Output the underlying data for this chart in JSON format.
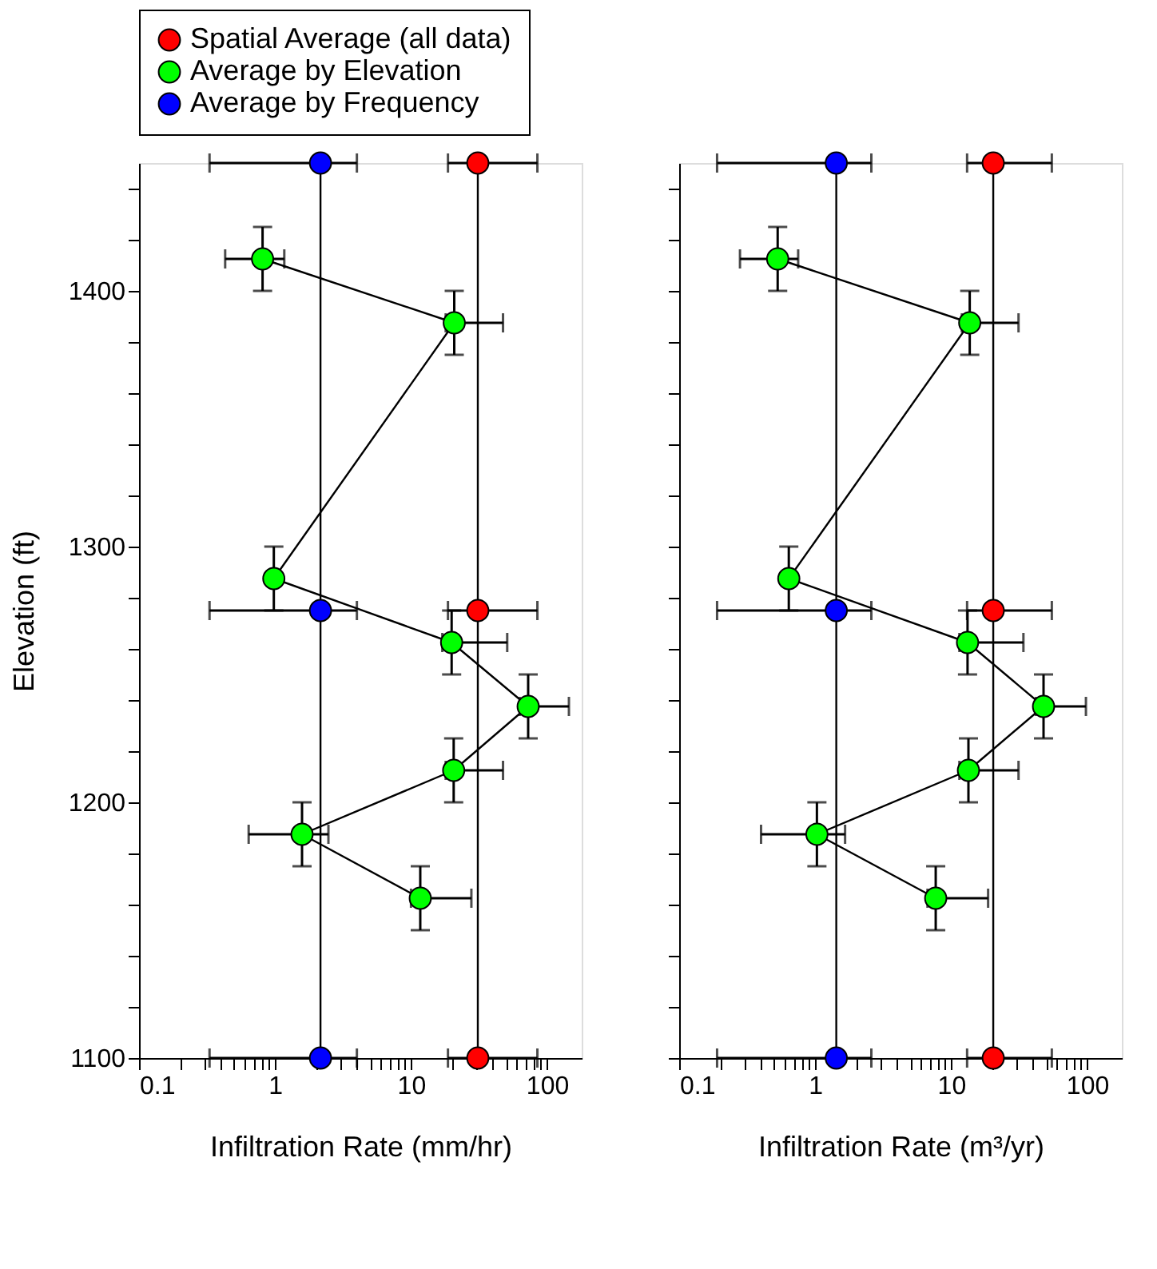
{
  "chart_data": [
    {
      "type": "line",
      "xlabel": "Infiltration Rate (mm/hr)",
      "ylabel": "Elevation (ft)",
      "log": "x",
      "marker": "circle",
      "legend": "top",
      "grid": false,
      "xlim": [
        0.1,
        180
      ],
      "xticks": [
        0.1,
        {
          "value": 0.2,
          "label": null
        },
        {
          "value": 0.3,
          "label": null
        },
        {
          "value": 0.4,
          "label": null
        },
        {
          "value": 0.5,
          "label": null
        },
        {
          "value": 0.6,
          "label": null
        },
        {
          "value": 0.7,
          "label": null
        },
        {
          "value": 0.8,
          "label": null
        },
        {
          "value": 0.9,
          "label": null
        },
        1,
        {
          "value": 2,
          "label": null
        },
        {
          "value": 3,
          "label": null
        },
        {
          "value": 4,
          "label": null
        },
        {
          "value": 5,
          "label": null
        },
        {
          "value": 6,
          "label": null
        },
        {
          "value": 7,
          "label": null
        },
        {
          "value": 8,
          "label": null
        },
        {
          "value": 9,
          "label": null
        },
        10,
        {
          "value": 20,
          "label": null
        },
        {
          "value": 30,
          "label": null
        },
        {
          "value": 40,
          "label": null
        },
        {
          "value": 50,
          "label": null
        },
        {
          "value": 60,
          "label": null
        },
        {
          "value": 70,
          "label": null
        },
        {
          "value": 80,
          "label": null
        },
        {
          "value": 90,
          "label": null
        },
        100
      ],
      "ylim": [
        1100,
        1450
      ],
      "yticks": [
        1100,
        {
          "value": 1120,
          "label": null
        },
        {
          "value": 1140,
          "label": null
        },
        {
          "value": 1160,
          "label": null
        },
        {
          "value": 1180,
          "label": null
        },
        1200,
        {
          "value": 1220,
          "label": null
        },
        {
          "value": 1240,
          "label": null
        },
        {
          "value": 1260,
          "label": null
        },
        {
          "value": 1280,
          "label": null
        },
        1300,
        {
          "value": 1320,
          "label": null
        },
        {
          "value": 1340,
          "label": null
        },
        {
          "value": 1360,
          "label": null
        },
        {
          "value": 1380,
          "label": null
        },
        1400,
        {
          "value": 1420,
          "label": null
        },
        {
          "value": 1440,
          "label": null
        }
      ],
      "series": [
        {
          "name": "Spatial Average (all data)",
          "color": "#ff0000",
          "x": [
            31,
            31,
            31
          ],
          "values": [
            1100,
            1275,
            1450
          ],
          "xerrors": [
            [
              18.7,
              85
            ],
            [
              18.7,
              85
            ],
            [
              18.7,
              85
            ]
          ]
        },
        {
          "name": "Average by Elevation",
          "color": "#00ff00",
          "x": [
            0.81,
            20.8,
            0.98,
            19.9,
            72.7,
            20.6,
            1.58,
            11.7
          ],
          "values": [
            1412.5,
            1387.5,
            1287.5,
            1262.5,
            1237.5,
            1212.5,
            1187.5,
            1162.5
          ],
          "errors": [
            12.5,
            12.5,
            12.5,
            12.5,
            12.5,
            12.5,
            12.5,
            12.5
          ],
          "xerrors": [
            [
              0.43,
              1.17
            ],
            [
              18,
              47.5
            ],
            null,
            [
              17,
              51
            ],
            [
              63,
              145
            ],
            [
              18,
              47.5
            ],
            [
              0.64,
              2.47
            ],
            [
              10,
              27.8
            ]
          ]
        },
        {
          "name": "Average by Frequency",
          "color": "#0000ff",
          "x": [
            2.16,
            2.16,
            2.16
          ],
          "values": [
            1100,
            1275,
            1450
          ],
          "xerrors": [
            [
              0.33,
              4.0
            ],
            [
              0.33,
              4.0
            ],
            [
              0.33,
              4.0
            ]
          ]
        }
      ]
    },
    {
      "type": "line",
      "xlabel": "Infiltration Rate (m³/yr)",
      "log": "x",
      "marker": "circle",
      "legend": "top",
      "grid": false,
      "tick_labels": "x",
      "xlim": [
        0.1,
        180
      ],
      "xticks": [
        0.1,
        {
          "value": 0.2,
          "label": null
        },
        {
          "value": 0.3,
          "label": null
        },
        {
          "value": 0.4,
          "label": null
        },
        {
          "value": 0.5,
          "label": null
        },
        {
          "value": 0.6,
          "label": null
        },
        {
          "value": 0.7,
          "label": null
        },
        {
          "value": 0.8,
          "label": null
        },
        {
          "value": 0.9,
          "label": null
        },
        1,
        {
          "value": 2,
          "label": null
        },
        {
          "value": 3,
          "label": null
        },
        {
          "value": 4,
          "label": null
        },
        {
          "value": 5,
          "label": null
        },
        {
          "value": 6,
          "label": null
        },
        {
          "value": 7,
          "label": null
        },
        {
          "value": 8,
          "label": null
        },
        {
          "value": 9,
          "label": null
        },
        10,
        {
          "value": 20,
          "label": null
        },
        {
          "value": 30,
          "label": null
        },
        {
          "value": 40,
          "label": null
        },
        {
          "value": 50,
          "label": null
        },
        {
          "value": 60,
          "label": null
        },
        {
          "value": 70,
          "label": null
        },
        {
          "value": 80,
          "label": null
        },
        {
          "value": 90,
          "label": null
        },
        100
      ],
      "ylim": [
        1100,
        1450
      ],
      "yticks": [
        1100,
        {
          "value": 1120,
          "label": null
        },
        {
          "value": 1140,
          "label": null
        },
        {
          "value": 1160,
          "label": null
        },
        {
          "value": 1180,
          "label": null
        },
        1200,
        {
          "value": 1220,
          "label": null
        },
        {
          "value": 1240,
          "label": null
        },
        {
          "value": 1260,
          "label": null
        },
        {
          "value": 1280,
          "label": null
        },
        1300,
        {
          "value": 1320,
          "label": null
        },
        {
          "value": 1340,
          "label": null
        },
        {
          "value": 1360,
          "label": null
        },
        {
          "value": 1380,
          "label": null
        },
        1400,
        {
          "value": 1420,
          "label": null
        },
        {
          "value": 1440,
          "label": null
        }
      ],
      "series": [
        {
          "color": "#ff0000",
          "x": [
            20.4,
            20.4,
            20.4
          ],
          "values": [
            1100,
            1275,
            1450
          ],
          "xerrors": [
            [
              13.1,
              55
            ],
            [
              13.1,
              55
            ],
            [
              13.1,
              55
            ]
          ]
        },
        {
          "color": "#00ff00",
          "x": [
            0.53,
            13.7,
            0.64,
            13.2,
            47.8,
            13.4,
            1.03,
            7.7
          ],
          "values": [
            1412.5,
            1387.5,
            1287.5,
            1262.5,
            1237.5,
            1212.5,
            1187.5,
            1162.5
          ],
          "errors": [
            12.5,
            12.5,
            12.5,
            12.5,
            12.5,
            12.5,
            12.5,
            12.5
          ],
          "xerrors": [
            [
              0.28,
              0.75
            ],
            [
              12,
              31.3
            ],
            null,
            [
              11.5,
              34.0
            ],
            [
              42,
              98
            ],
            [
              11.5,
              31.3
            ],
            [
              0.4,
              1.66
            ],
            [
              6.7,
              18.7
            ]
          ]
        },
        {
          "color": "#0000ff",
          "x": [
            1.43,
            1.43,
            1.43
          ],
          "values": [
            1100,
            1275,
            1450
          ],
          "xerrors": [
            [
              0.19,
              2.59
            ],
            [
              0.19,
              2.59
            ],
            [
              0.19,
              2.59
            ]
          ]
        }
      ]
    }
  ]
}
